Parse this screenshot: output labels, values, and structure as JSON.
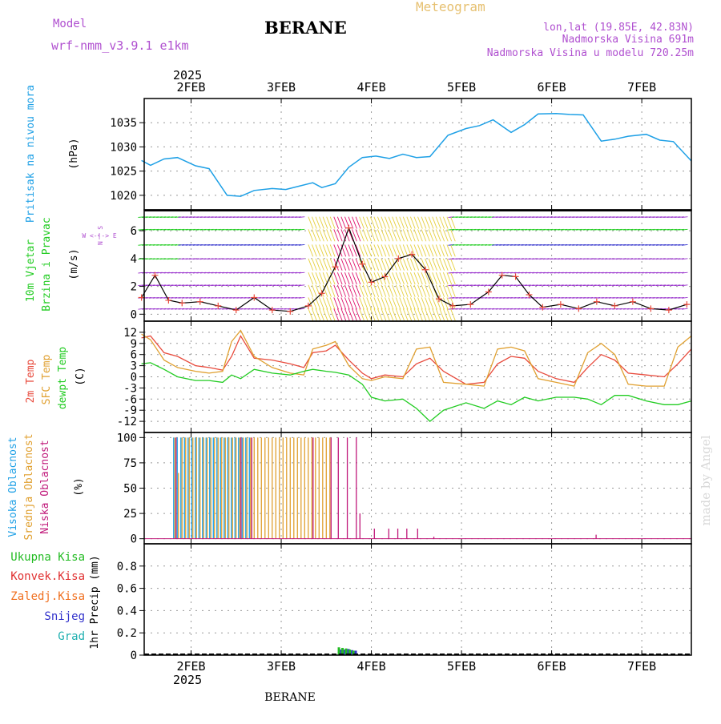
{
  "header": {
    "model_label": "Model",
    "model_name": "wrf-nmm_v3.9.1  e1km",
    "title": "BERANE",
    "meteogram": "Meteogram",
    "lonlat": "lon,lat (19.85E, 42.83N)",
    "elevation": "Nadmorska Visina 691m",
    "model_elevation": "Nadmorska Visina u modelu 720.25m",
    "year_top": "2025",
    "year_bottom": "2025",
    "footer": "BERANE",
    "watermark": "made by Angel"
  },
  "colors": {
    "pressure": "#1ea0e6",
    "wind_label": "#22cc22",
    "temp2m": "#e84a3c",
    "sfc": "#e0a030",
    "dew": "#22cc22",
    "high_cloud": "#1ea0e6",
    "mid_cloud": "#e0a030",
    "low_cloud": "#c0187a",
    "total_precip": "#22bb22",
    "conv_precip": "#e03030",
    "frozen": "#f07020",
    "snow": "#3333cc",
    "graupel": "#20b0b0"
  },
  "x_axis": {
    "dates": [
      "2FEB",
      "3FEB",
      "4FEB",
      "5FEB",
      "6FEB",
      "7FEB"
    ]
  },
  "chart_data": [
    {
      "type": "line",
      "name": "pressure",
      "ylabel_left": "Pritisak na nivou mora",
      "ylabel_unit": "(hPa)",
      "ylim": [
        1017,
        1040
      ],
      "yticks": [
        1020,
        1025,
        1030,
        1035
      ],
      "ytick_labels": [
        "1020",
        "1025",
        "1030",
        "1035"
      ],
      "x_day": [
        1.45,
        1.55,
        1.7,
        1.85,
        2.05,
        2.2,
        2.4,
        2.55,
        2.7,
        2.9,
        3.05,
        3.2,
        3.35,
        3.45,
        3.6,
        3.75,
        3.9,
        4.05,
        4.2,
        4.35,
        4.5,
        4.65,
        4.85,
        5.05,
        5.2,
        5.35,
        5.55,
        5.7,
        5.85,
        6.05,
        6.2,
        6.35,
        6.55,
        6.7,
        6.85,
        7.05,
        7.2,
        7.35,
        7.55
      ],
      "values": [
        1027.2,
        1026.2,
        1027.5,
        1027.8,
        1026.1,
        1025.5,
        1020.0,
        1019.8,
        1021.0,
        1021.4,
        1021.2,
        1021.9,
        1022.6,
        1021.6,
        1022.4,
        1025.8,
        1027.8,
        1028.1,
        1027.6,
        1028.5,
        1027.8,
        1028.0,
        1032.4,
        1033.8,
        1034.4,
        1035.6,
        1033.0,
        1034.6,
        1036.8,
        1036.9,
        1036.7,
        1036.6,
        1031.2,
        1031.6,
        1032.2,
        1032.6,
        1031.4,
        1031.1,
        1027.1
      ]
    },
    {
      "type": "line",
      "name": "wind",
      "ylabel_left": "10m Vjetar",
      "ylabel_left2": "Brzina i Pravac",
      "ylabel_unit": "(m/s)",
      "compass": "W <-|-> E",
      "compass_ns": "N ^ S",
      "ylim": [
        -0.5,
        7.5
      ],
      "yticks": [
        0,
        2,
        4,
        6
      ],
      "ytick_labels": [
        "0",
        "2",
        "4",
        "6"
      ],
      "x_day": [
        1.45,
        1.6,
        1.75,
        1.9,
        2.1,
        2.3,
        2.5,
        2.7,
        2.9,
        3.1,
        3.3,
        3.45,
        3.6,
        3.75,
        3.9,
        4.0,
        4.15,
        4.3,
        4.45,
        4.6,
        4.75,
        4.9,
        5.1,
        5.3,
        5.45,
        5.6,
        5.75,
        5.9,
        6.1,
        6.3,
        6.5,
        6.7,
        6.9,
        7.1,
        7.3,
        7.5
      ],
      "values": [
        1.2,
        2.8,
        1.0,
        0.8,
        0.9,
        0.6,
        0.3,
        1.2,
        0.3,
        0.2,
        0.6,
        1.5,
        3.4,
        6.2,
        3.6,
        2.3,
        2.7,
        4.0,
        4.3,
        3.2,
        1.1,
        0.6,
        0.7,
        1.6,
        2.8,
        2.7,
        1.4,
        0.5,
        0.7,
        0.4,
        0.9,
        0.6,
        0.9,
        0.4,
        0.3,
        0.7
      ]
    },
    {
      "type": "line",
      "name": "temperature",
      "ylabel_left": "2m Temp",
      "ylabel_left2": "SFC Temp",
      "ylabel_left3": "dewpt Temp",
      "ylabel_unit": "(C)",
      "ylim": [
        -15,
        15
      ],
      "yticks": [
        -12,
        -9,
        -6,
        -3,
        0,
        3,
        6,
        9,
        12
      ],
      "ytick_labels": [
        "-12",
        "-9",
        "-6",
        "-3",
        "0",
        "3",
        "6",
        "9",
        "12"
      ],
      "x_day": [
        1.45,
        1.55,
        1.7,
        1.85,
        2.05,
        2.2,
        2.35,
        2.45,
        2.55,
        2.7,
        2.9,
        3.1,
        3.25,
        3.35,
        3.5,
        3.6,
        3.75,
        3.9,
        4.0,
        4.15,
        4.35,
        4.5,
        4.65,
        4.8,
        5.05,
        5.25,
        5.4,
        5.55,
        5.7,
        5.85,
        6.05,
        6.25,
        6.4,
        6.55,
        6.7,
        6.85,
        7.05,
        7.25,
        7.4,
        7.55
      ],
      "series": [
        {
          "name": "2m Temp",
          "values": [
            10.5,
            11.0,
            6.5,
            5.5,
            3.0,
            2.5,
            1.8,
            5.5,
            11.0,
            5.0,
            4.5,
            3.5,
            2.5,
            6.5,
            7.0,
            8.5,
            4.5,
            1.0,
            -0.5,
            0.5,
            0.0,
            3.5,
            5.0,
            1.5,
            -2.0,
            -1.5,
            3.5,
            5.5,
            5.0,
            1.5,
            -0.5,
            -1.5,
            2.5,
            6.0,
            4.5,
            1.0,
            0.5,
            0.0,
            3.5,
            7.5
          ]
        },
        {
          "name": "SFC Temp",
          "values": [
            11.5,
            10.0,
            4.5,
            2.5,
            1.5,
            1.0,
            1.5,
            9.5,
            12.5,
            5.5,
            2.5,
            1.0,
            0.5,
            7.5,
            8.5,
            9.5,
            3.0,
            -0.5,
            -1.0,
            0.0,
            -0.5,
            7.5,
            8.0,
            -1.5,
            -2.0,
            -2.5,
            7.5,
            8.0,
            7.0,
            -0.5,
            -1.5,
            -2.5,
            6.5,
            9.0,
            6.0,
            -2.0,
            -2.5,
            -2.5,
            8.0,
            11.0
          ]
        },
        {
          "name": "dewpt Temp",
          "values": [
            3.5,
            3.8,
            2.0,
            0.0,
            -1.0,
            -1.0,
            -1.5,
            0.5,
            -0.5,
            2.0,
            1.0,
            0.5,
            1.5,
            2.0,
            1.5,
            1.2,
            0.5,
            -2.0,
            -5.5,
            -6.5,
            -6.0,
            -8.5,
            -12.0,
            -9.0,
            -7.0,
            -8.5,
            -6.5,
            -7.5,
            -5.5,
            -6.5,
            -5.5,
            -5.5,
            -6.0,
            -7.5,
            -5.0,
            -5.0,
            -6.5,
            -7.5,
            -7.5,
            -6.5
          ]
        }
      ]
    },
    {
      "type": "bar",
      "name": "clouds",
      "ylabel_left": "Visoka Oblacnost",
      "ylabel_left2": "Srednja Oblacnost",
      "ylabel_left3": "Niska Oblacnost",
      "ylabel_unit": "(%)",
      "ylim": [
        -5,
        105
      ],
      "yticks": [
        0,
        25,
        50,
        75,
        100
      ],
      "ytick_labels": [
        "0",
        "25",
        "50",
        "75",
        "100"
      ],
      "x_day": [
        1.82,
        1.86,
        1.9,
        1.94,
        1.98,
        2.02,
        2.06,
        2.1,
        2.14,
        2.18,
        2.22,
        2.26,
        2.3,
        2.34,
        2.38,
        2.42,
        2.46,
        2.5,
        2.54,
        2.58,
        2.62,
        2.66,
        2.7,
        2.74,
        2.78,
        2.82,
        2.86,
        2.9,
        2.94,
        2.98,
        3.02,
        3.06,
        3.1,
        3.14,
        3.18,
        3.22,
        3.26,
        3.3,
        3.34,
        3.38,
        3.42,
        3.46,
        3.5,
        3.54,
        3.62,
        3.72,
        3.82,
        3.86,
        4.02,
        4.18,
        4.28,
        4.38,
        4.5,
        4.68,
        6.48
      ],
      "series": [
        {
          "name": "Visoka Oblacnost",
          "values": [
            100,
            100,
            100,
            100,
            100,
            100,
            100,
            100,
            100,
            100,
            100,
            100,
            100,
            100,
            100,
            100,
            100,
            100,
            100,
            100,
            100,
            100,
            0,
            0,
            0,
            0,
            0,
            0,
            0,
            0,
            0,
            0,
            0,
            0,
            0,
            0,
            0,
            0,
            0,
            0,
            0,
            0,
            0,
            0,
            0,
            0,
            0,
            0,
            0,
            0,
            0,
            0,
            0,
            0,
            0
          ]
        },
        {
          "name": "Srednja Oblacnost",
          "values": [
            100,
            65,
            100,
            100,
            100,
            100,
            100,
            100,
            100,
            100,
            100,
            100,
            100,
            100,
            100,
            100,
            100,
            100,
            100,
            100,
            100,
            100,
            100,
            100,
            100,
            100,
            100,
            100,
            100,
            100,
            100,
            100,
            100,
            100,
            100,
            100,
            100,
            100,
            100,
            100,
            100,
            100,
            100,
            100,
            0,
            0,
            0,
            0,
            0,
            0,
            0,
            0,
            0,
            0,
            0
          ]
        },
        {
          "name": "Niska Oblacnost",
          "values": [
            100,
            0,
            0,
            0,
            0,
            0,
            0,
            0,
            0,
            0,
            0,
            0,
            0,
            0,
            0,
            0,
            0,
            0,
            100,
            0,
            0,
            100,
            0,
            0,
            0,
            0,
            0,
            0,
            0,
            0,
            0,
            0,
            0,
            0,
            0,
            0,
            0,
            0,
            100,
            0,
            0,
            0,
            0,
            100,
            100,
            100,
            100,
            25,
            10,
            10,
            10,
            10,
            10,
            2,
            4
          ]
        }
      ]
    },
    {
      "type": "bar",
      "name": "precipitation",
      "ylabel_left": "1hr Precip (mm)",
      "ylim": [
        0,
        1.0
      ],
      "yticks": [
        0,
        0.2,
        0.4,
        0.6,
        0.8
      ],
      "ytick_labels": [
        "0",
        "0.2",
        "0.4",
        "0.6",
        "0.8"
      ],
      "legend": [
        "Ukupna Kisa",
        "Konvek.Kisa",
        "Zaledj.Kisa",
        "Snijeg",
        "Grad"
      ],
      "x_day": [
        3.64,
        3.68,
        3.72,
        3.76,
        3.8
      ],
      "series": [
        {
          "name": "Ukupna Kisa",
          "values": [
            0.07,
            0.065,
            0.06,
            0.05,
            0.04
          ]
        },
        {
          "name": "Snijeg",
          "values": [
            0.05,
            0.05,
            0.055,
            0.045,
            0.04
          ]
        }
      ]
    }
  ]
}
